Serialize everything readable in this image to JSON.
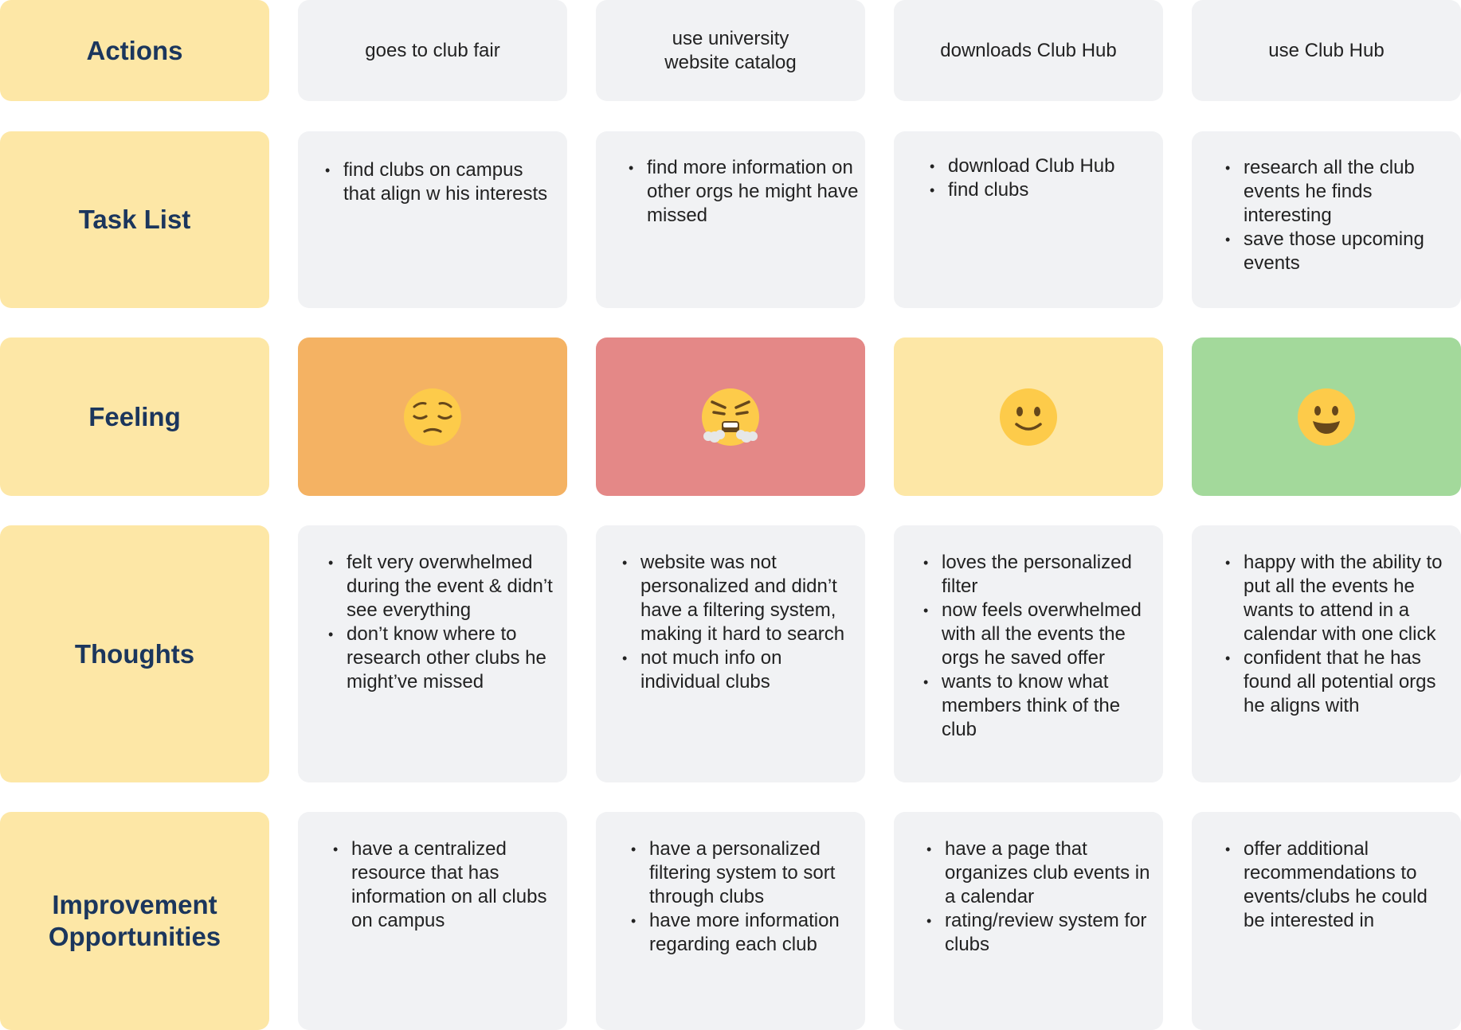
{
  "row_labels": {
    "actions": "Actions",
    "tasks": "Task List",
    "feeling": "Feeling",
    "thoughts": "Thoughts",
    "improvement": [
      "Improvement",
      "Opportunities"
    ]
  },
  "actions": [
    "goes to club fair",
    "use university website catalog",
    "downloads Club Hub",
    "use Club Hub"
  ],
  "tasks": [
    [
      "find clubs on campus that align w his interests"
    ],
    [
      "find more information on other orgs he might have missed"
    ],
    [
      "download Club Hub",
      "find clubs"
    ],
    [
      "research all the club events he finds interesting",
      "save those upcoming events"
    ]
  ],
  "feelings": [
    {
      "icon": "pensive-face-icon",
      "color": "#f4b263"
    },
    {
      "icon": "angry-huffing-face-icon",
      "color": "#e48887"
    },
    {
      "icon": "slight-smile-face-icon",
      "color": "#fde7a6"
    },
    {
      "icon": "grinning-face-icon",
      "color": "#a3d99b"
    }
  ],
  "thoughts": [
    [
      "felt very overwhelmed during the event & didn’t see everything",
      "don’t know where to research other clubs he might’ve missed"
    ],
    [
      "website was not personalized and didn’t have a filtering system, making it hard to search",
      "not much info on individual clubs"
    ],
    [
      "loves the personalized filter",
      "now feels overwhelmed with all the events the orgs he saved offer",
      "wants to know what members think of the club"
    ],
    [
      "happy with the ability to put all the events he wants to attend in a calendar with one click",
      "confident that he has found all potential orgs he aligns with"
    ]
  ],
  "improvements": [
    [
      "have a centralized resource that has information on all clubs on campus"
    ],
    [
      "have a personalized filtering system to sort through clubs",
      "have more information regarding each club"
    ],
    [
      "have a page that organizes club events in a calendar",
      "rating/review system for clubs"
    ],
    [
      "offer additional recommendations to events/clubs he could be interested in"
    ]
  ],
  "colors": {
    "label_bg": "#fde7a6",
    "label_text": "#1b365d",
    "card_bg": "#f1f2f4"
  }
}
